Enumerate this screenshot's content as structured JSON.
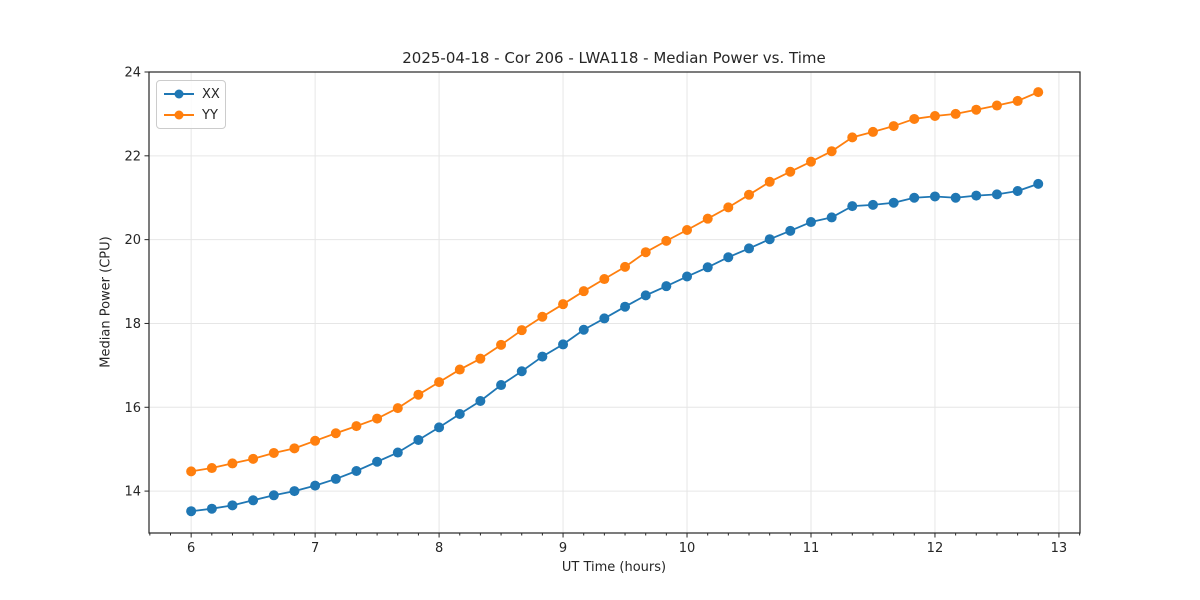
{
  "figure": {
    "background": "#ffffff",
    "text_color": "#262626"
  },
  "chart_data": {
    "type": "line",
    "title": "2025-04-18 - Cor 206 - LWA118 - Median Power vs. Time",
    "xlabel": "UT Time (hours)",
    "ylabel": "Median Power (CPU)",
    "xlim": [
      5.66,
      13.17
    ],
    "ylim": [
      13,
      24
    ],
    "x_ticks": [
      6,
      7,
      8,
      9,
      10,
      11,
      12,
      13
    ],
    "y_ticks": [
      14,
      16,
      18,
      20,
      22,
      24
    ],
    "x_minor_tick_step": 0.1667,
    "grid": true,
    "grid_color": "#e6e6e6",
    "axis_color": "#262626",
    "legend_position": "upper-left",
    "marker": "circle",
    "x": [
      6.0,
      6.167,
      6.333,
      6.5,
      6.667,
      6.833,
      7.0,
      7.167,
      7.333,
      7.5,
      7.667,
      7.833,
      8.0,
      8.167,
      8.333,
      8.5,
      8.667,
      8.833,
      9.0,
      9.167,
      9.333,
      9.5,
      9.667,
      9.833,
      10.0,
      10.167,
      10.333,
      10.5,
      10.667,
      10.833,
      11.0,
      11.167,
      11.333,
      11.5,
      11.667,
      11.833,
      12.0,
      12.167,
      12.333,
      12.5,
      12.667,
      12.833
    ],
    "series": [
      {
        "name": "XX",
        "color": "#1f77b4",
        "values": [
          13.52,
          13.58,
          13.66,
          13.78,
          13.9,
          14.0,
          14.13,
          14.29,
          14.48,
          14.7,
          14.92,
          15.22,
          15.52,
          15.84,
          16.15,
          16.53,
          16.86,
          17.21,
          17.5,
          17.85,
          18.12,
          18.4,
          18.67,
          18.89,
          19.12,
          19.34,
          19.58,
          19.79,
          20.01,
          20.21,
          20.42,
          20.53,
          20.8,
          20.83,
          20.88,
          21.0,
          21.03,
          21.0,
          21.05,
          21.08,
          21.16,
          21.33
        ]
      },
      {
        "name": "YY",
        "color": "#ff7f0e",
        "values": [
          14.47,
          14.55,
          14.66,
          14.77,
          14.91,
          15.02,
          15.2,
          15.38,
          15.55,
          15.73,
          15.98,
          16.3,
          16.6,
          16.9,
          17.16,
          17.49,
          17.84,
          18.16,
          18.46,
          18.77,
          19.06,
          19.35,
          19.7,
          19.97,
          20.23,
          20.5,
          20.77,
          21.07,
          21.38,
          21.62,
          21.86,
          22.11,
          22.44,
          22.57,
          22.71,
          22.88,
          22.95,
          23.0,
          23.1,
          23.2,
          23.31,
          23.52
        ]
      }
    ]
  }
}
